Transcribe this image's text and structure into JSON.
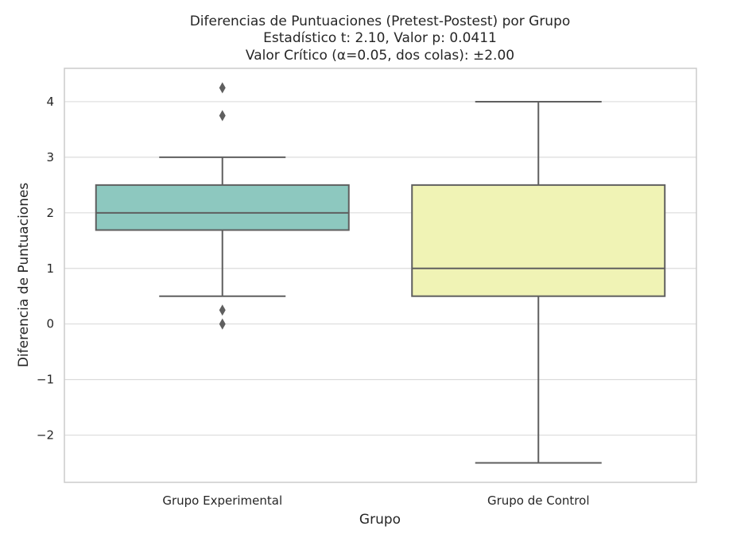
{
  "chart_data": {
    "type": "box",
    "title": "Diferencias de Puntuaciones (Pretest-Postest) por Grupo",
    "subtitle_lines": [
      "Estadístico t: 2.10, Valor p: 0.0411",
      "Valor Crítico (α=0.05, dos colas): ±2.00"
    ],
    "xlabel": "Grupo",
    "ylabel": "Diferencia de Puntuaciones",
    "ylim": [
      -2.85,
      4.6
    ],
    "yticks": [
      -2,
      -1,
      0,
      1,
      2,
      3,
      4
    ],
    "ytick_labels": [
      "−2",
      "−1",
      "0",
      "1",
      "2",
      "3",
      "4"
    ],
    "grid": "horizontal",
    "categories": [
      "Grupo Experimental",
      "Grupo de Control"
    ],
    "boxes": [
      {
        "category": "Grupo Experimental",
        "whisker_low": 0.5,
        "q1": 1.69,
        "median": 2.0,
        "q3": 2.5,
        "whisker_high": 3.0,
        "outliers": [
          4.25,
          3.75,
          0.25,
          0.0
        ],
        "color": "#8dc8bf"
      },
      {
        "category": "Grupo de Control",
        "whisker_low": -2.5,
        "q1": 0.5,
        "median": 1.0,
        "q3": 2.5,
        "whisker_high": 4.0,
        "outliers": [],
        "color": "#f0f3b5"
      }
    ],
    "colors": {
      "edge": "#5f5f5f",
      "grid": "#dcdcdc",
      "frame": "#cccccc"
    }
  }
}
